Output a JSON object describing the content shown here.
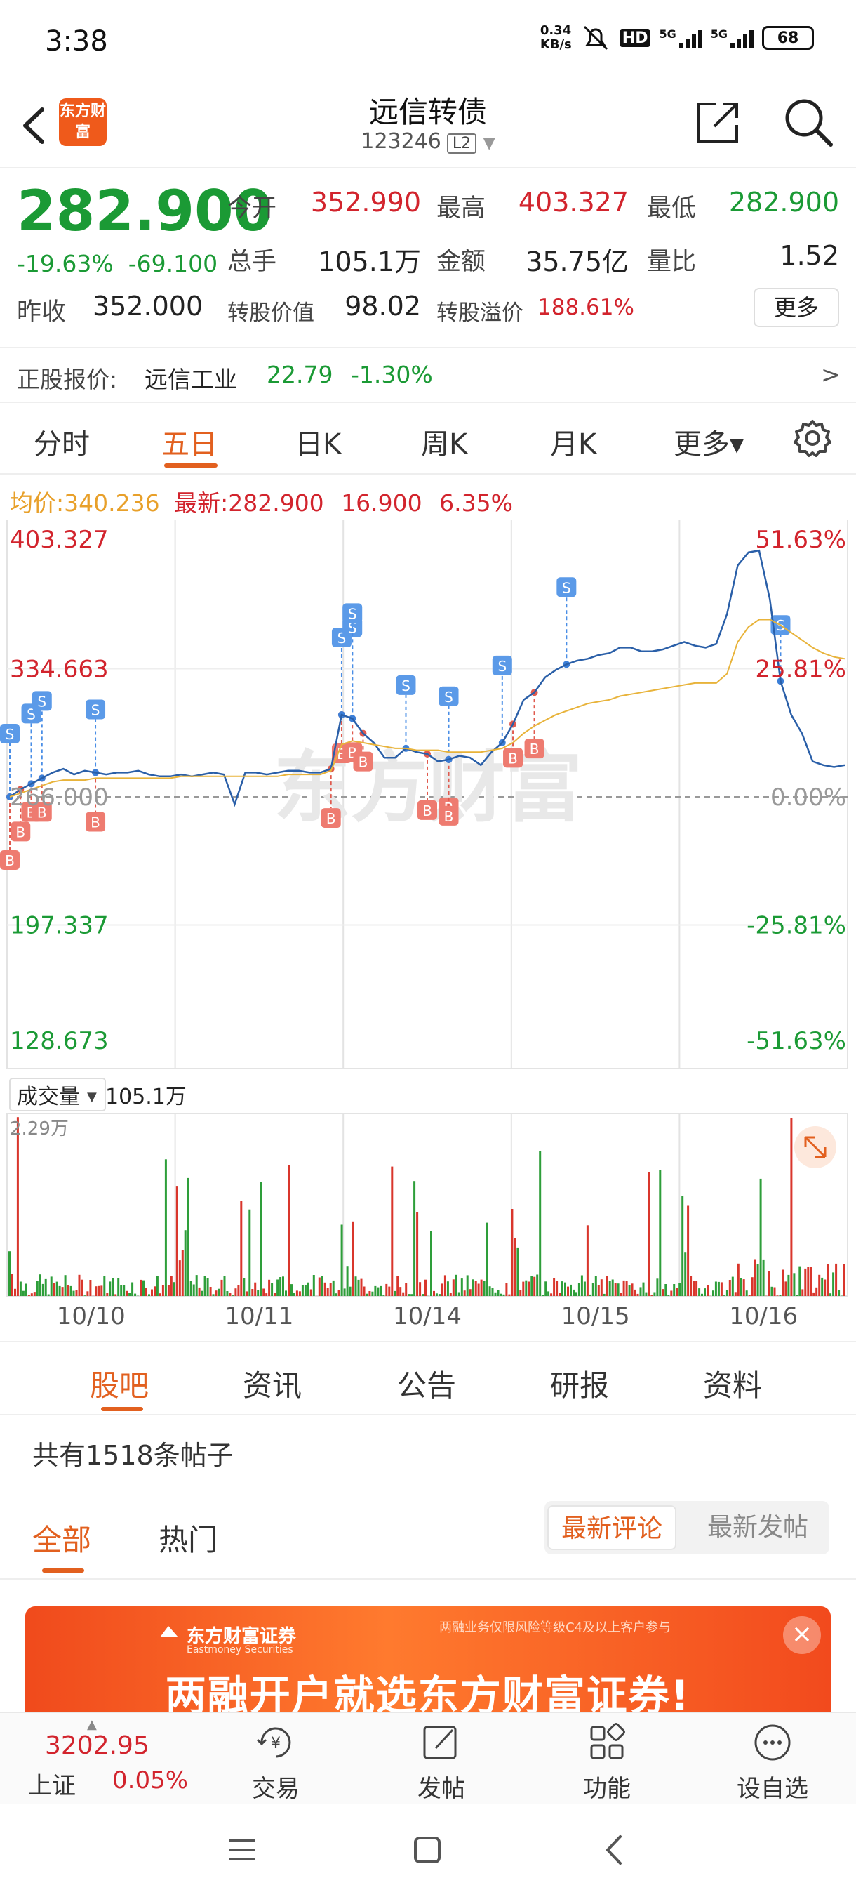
{
  "status": {
    "time": "3:38",
    "net_speed": "0.34",
    "net_unit": "KB/s",
    "hd": "HD",
    "net1": "5G",
    "net2": "5G",
    "battery": "68"
  },
  "header": {
    "logo_text": "东方财富",
    "title": "远信转债",
    "code": "123246",
    "level": "L2"
  },
  "quote": {
    "price": "282.900",
    "change_pct": "-19.63%",
    "change_amt": "-69.100",
    "prev_close_label": "昨收",
    "prev_close": "352.000",
    "fields": [
      {
        "label": "今开",
        "value": "352.990",
        "color": "red"
      },
      {
        "label": "最高",
        "value": "403.327",
        "color": "red"
      },
      {
        "label": "最低",
        "value": "282.900",
        "color": "green"
      },
      {
        "label": "总手",
        "value": "105.1万",
        "color": "black"
      },
      {
        "label": "金额",
        "value": "35.75亿",
        "color": "black"
      },
      {
        "label": "量比",
        "value": "1.52",
        "color": "black"
      },
      {
        "label": "转股价值",
        "value": "98.02",
        "color": "black"
      },
      {
        "label": "转股溢价",
        "value": "188.61%",
        "color": "red"
      }
    ],
    "more_label": "更多"
  },
  "underlying": {
    "label": "正股报价:",
    "name": "远信工业",
    "price": "22.79",
    "change": "-1.30%",
    "arrow": ">"
  },
  "chart_tabs": [
    "分时",
    "五日",
    "日K",
    "周K",
    "月K",
    "更多▾"
  ],
  "active_chart_tab": 1,
  "avg_info": {
    "avg_label": "均价:",
    "avg_value": "340.236",
    "latest_label": "最新:",
    "latest_value": "282.900",
    "chg": "16.900",
    "chg_pct": "6.35%"
  },
  "chart_data": {
    "type": "line",
    "ylim": [
      128.673,
      403.327
    ],
    "ref": 266.0,
    "y_ticks_left": [
      "403.327",
      "334.663",
      "266.000",
      "197.337",
      "128.673"
    ],
    "y_ticks_right": [
      "51.63%",
      "25.81%",
      "0.00%",
      "-25.81%",
      "-51.63%"
    ],
    "x_labels": [
      "10/10",
      "10/11",
      "10/14",
      "10/15",
      "10/16"
    ],
    "series": [
      {
        "values": [
          266,
          270,
          273,
          276,
          279,
          281,
          278,
          280,
          279,
          278,
          279,
          279,
          280,
          278,
          277,
          277,
          278,
          277,
          278,
          279,
          278,
          262,
          279,
          279,
          278,
          279,
          280,
          280,
          279,
          279,
          281,
          310,
          308,
          300,
          295,
          287,
          287,
          292,
          290,
          289,
          285,
          286,
          288,
          287,
          283,
          290,
          295,
          305,
          318,
          322,
          330,
          334,
          337,
          339,
          340,
          342,
          343,
          346,
          346,
          344,
          344,
          345,
          347,
          349,
          347,
          346,
          348,
          364,
          390,
          397,
          398,
          372,
          328,
          310,
          300,
          285,
          283,
          282,
          283
        ]
      },
      {
        "values": [
          266,
          268,
          270,
          272,
          274,
          275,
          275,
          275,
          276,
          276,
          276,
          276,
          276,
          276,
          276,
          276,
          277,
          277,
          277,
          277,
          277,
          277,
          277,
          277,
          277,
          277,
          278,
          278,
          278,
          278,
          280,
          294,
          296,
          295,
          294,
          293,
          292,
          292,
          291,
          291,
          291,
          290,
          290,
          290,
          290,
          291,
          292,
          295,
          300,
          304,
          307,
          310,
          312,
          314,
          316,
          317,
          318,
          320,
          321,
          322,
          323,
          324,
          325,
          326,
          327,
          327,
          327,
          332,
          349,
          357,
          361,
          361,
          358,
          354,
          350,
          346,
          343,
          341,
          340
        ]
      }
    ],
    "buy_marks": 14,
    "sell_marks": 13,
    "volume_label": "成交量",
    "volume_total": "105.1万",
    "volume_max": "2.29万",
    "watermark": "东方财富"
  },
  "content_tabs": [
    "股吧",
    "资讯",
    "公告",
    "研报",
    "资料"
  ],
  "post_count": "共有1518条帖子",
  "sub_tabs": [
    "全部",
    "热门"
  ],
  "sort": {
    "latest_comment": "最新评论",
    "latest_post": "最新发帖"
  },
  "ad": {
    "brand": "东方财富证券",
    "brand_en": "Eastmoney Securities",
    "note": "两融业务仅限风险等级C4及以上客户参与",
    "text": "两融开户就选东方财富证券!"
  },
  "bottom_nav": {
    "index_price": "3202.95",
    "index_name": "上证",
    "index_change": "0.05%",
    "items": [
      "交易",
      "发帖",
      "功能",
      "设自选"
    ]
  },
  "colors": {
    "accent": "#e2601f",
    "up": "#d2242d",
    "down": "#1b9a35",
    "avg_line": "#e8b33a",
    "price_line": "#2a5fa8"
  }
}
